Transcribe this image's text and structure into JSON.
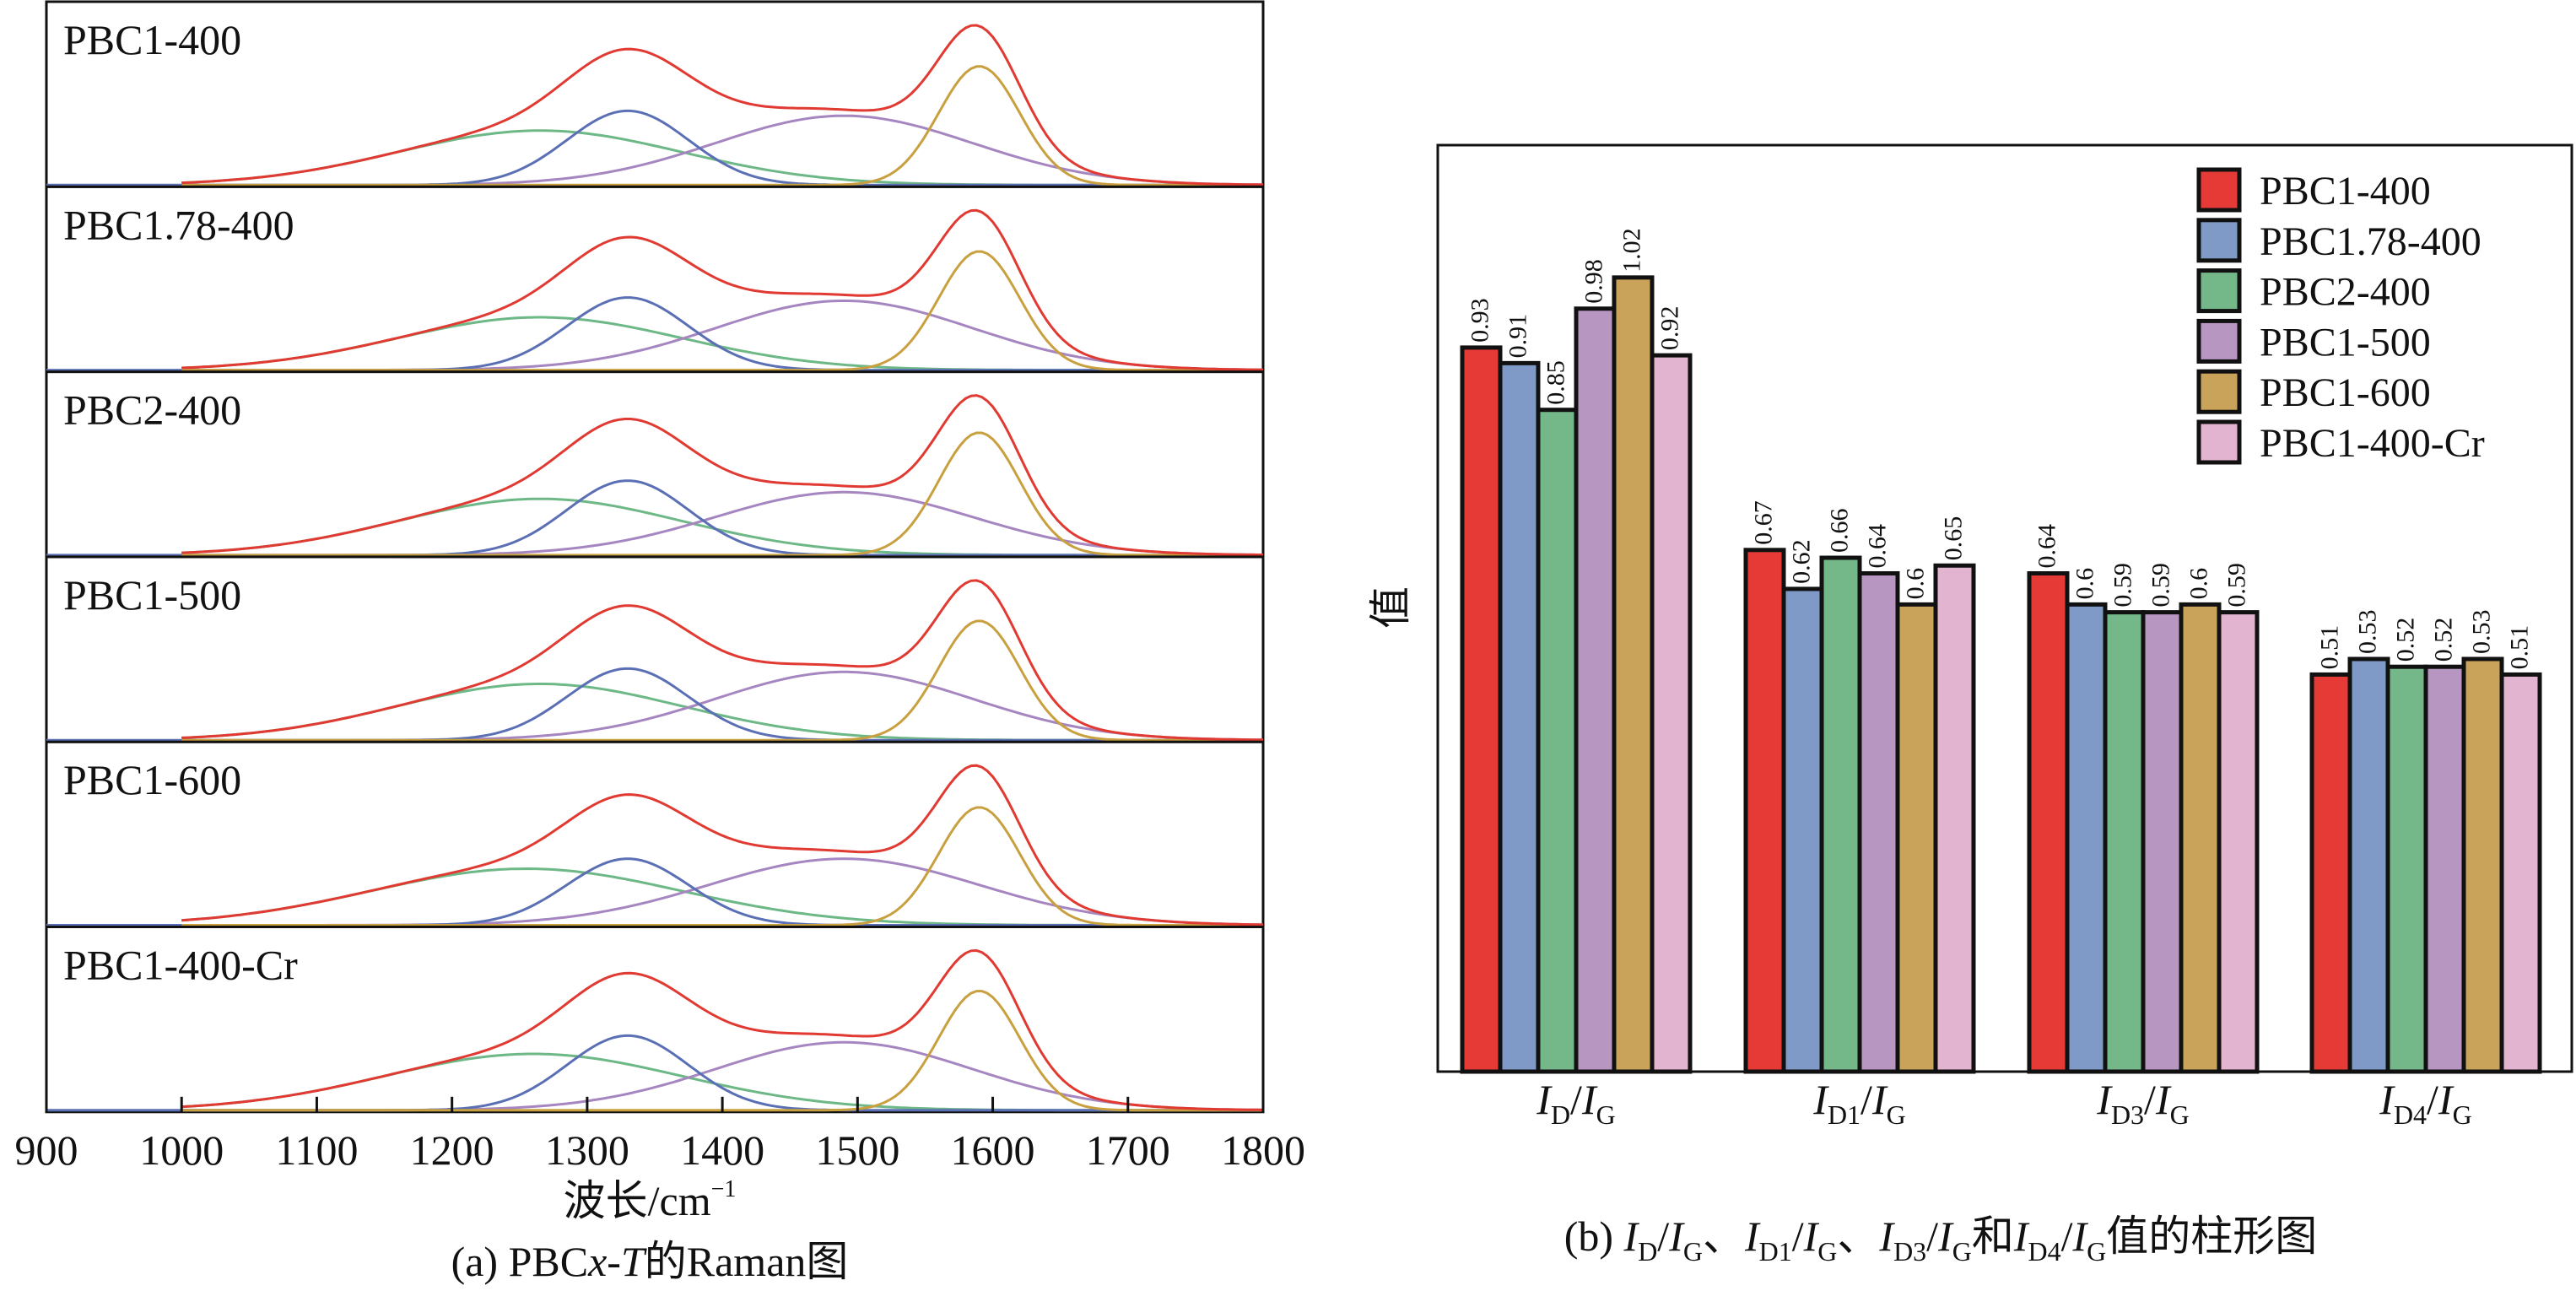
{
  "chart_data": [
    {
      "type": "line",
      "title": "(a) PBCx-T的Raman图",
      "caption_prefix": "(a) PBC",
      "caption_x": "x",
      "caption_dash": "-",
      "caption_T": "T",
      "caption_suffix": "的Raman图",
      "xlabel": "波长/cm",
      "xlabel_sup": "−1",
      "xlim": [
        900,
        1800
      ],
      "xticks": [
        "900",
        "1000",
        "1100",
        "1200",
        "1300",
        "1400",
        "1500",
        "1600",
        "1700",
        "1800"
      ],
      "component_colors": {
        "fit": "#e03a32",
        "D1": "#5b6fb5",
        "D3": "#a686c0",
        "D4": "#6db886",
        "G": "#c9a03f"
      },
      "panels": [
        {
          "label": "PBC1-400",
          "D1": [
            0.45,
            1330,
            45
          ],
          "D3": [
            0.42,
            1490,
            95
          ],
          "D4": [
            0.33,
            1265,
            105
          ],
          "G": [
            0.72,
            1590,
            30
          ]
        },
        {
          "label": "PBC1.78-400",
          "D1": [
            0.44,
            1330,
            45
          ],
          "D3": [
            0.42,
            1490,
            95
          ],
          "D4": [
            0.32,
            1265,
            105
          ],
          "G": [
            0.72,
            1590,
            30
          ]
        },
        {
          "label": "PBC2-400",
          "D1": [
            0.45,
            1330,
            45
          ],
          "D3": [
            0.38,
            1490,
            95
          ],
          "D4": [
            0.34,
            1265,
            105
          ],
          "G": [
            0.74,
            1590,
            30
          ]
        },
        {
          "label": "PBC1-500",
          "D1": [
            0.42,
            1330,
            45
          ],
          "D3": [
            0.4,
            1490,
            95
          ],
          "D4": [
            0.33,
            1265,
            105
          ],
          "G": [
            0.7,
            1590,
            30
          ]
        },
        {
          "label": "PBC1-600",
          "D1": [
            0.4,
            1330,
            45
          ],
          "D3": [
            0.4,
            1490,
            100
          ],
          "D4": [
            0.34,
            1255,
            115
          ],
          "G": [
            0.71,
            1590,
            30
          ]
        },
        {
          "label": "PBC1-400-Cr",
          "D1": [
            0.45,
            1330,
            45
          ],
          "D3": [
            0.41,
            1490,
            95
          ],
          "D4": [
            0.34,
            1260,
            110
          ],
          "G": [
            0.72,
            1590,
            30
          ]
        }
      ]
    },
    {
      "type": "bar",
      "title": "(b) ID/IG、ID1/IG、ID3/IG和ID4/IG值的柱形图",
      "caption_parts": {
        "open": "(b) ",
        "sep": "、",
        "and": "和",
        "end": "值的柱形图"
      },
      "ylabel": "值",
      "ylim": [
        0,
        1.19
      ],
      "categories": [
        {
          "main": "I",
          "sub": "D",
          "den": "I",
          "densub": "G"
        },
        {
          "main": "I",
          "sub": "D1",
          "den": "I",
          "densub": "G"
        },
        {
          "main": "I",
          "sub": "D3",
          "den": "I",
          "densub": "G"
        },
        {
          "main": "I",
          "sub": "D4",
          "den": "I",
          "densub": "G"
        }
      ],
      "legend_position": "top-right",
      "series": [
        {
          "name": "PBC1-400",
          "color": "#e63a37",
          "values": [
            0.93,
            0.67,
            0.64,
            0.51
          ]
        },
        {
          "name": "PBC1.78-400",
          "color": "#7f9ac6",
          "values": [
            0.91,
            0.62,
            0.6,
            0.53
          ]
        },
        {
          "name": "PBC2-400",
          "color": "#74b88a",
          "values": [
            0.85,
            0.66,
            0.59,
            0.52
          ]
        },
        {
          "name": "PBC1-500",
          "color": "#b796c1",
          "values": [
            0.98,
            0.64,
            0.59,
            0.52
          ]
        },
        {
          "name": "PBC1-600",
          "color": "#c9a35a",
          "values": [
            1.02,
            0.6,
            0.6,
            0.53
          ]
        },
        {
          "name": "PBC1-400-Cr",
          "color": "#e2b4d0",
          "values": [
            0.92,
            0.65,
            0.59,
            0.51
          ]
        }
      ]
    }
  ]
}
